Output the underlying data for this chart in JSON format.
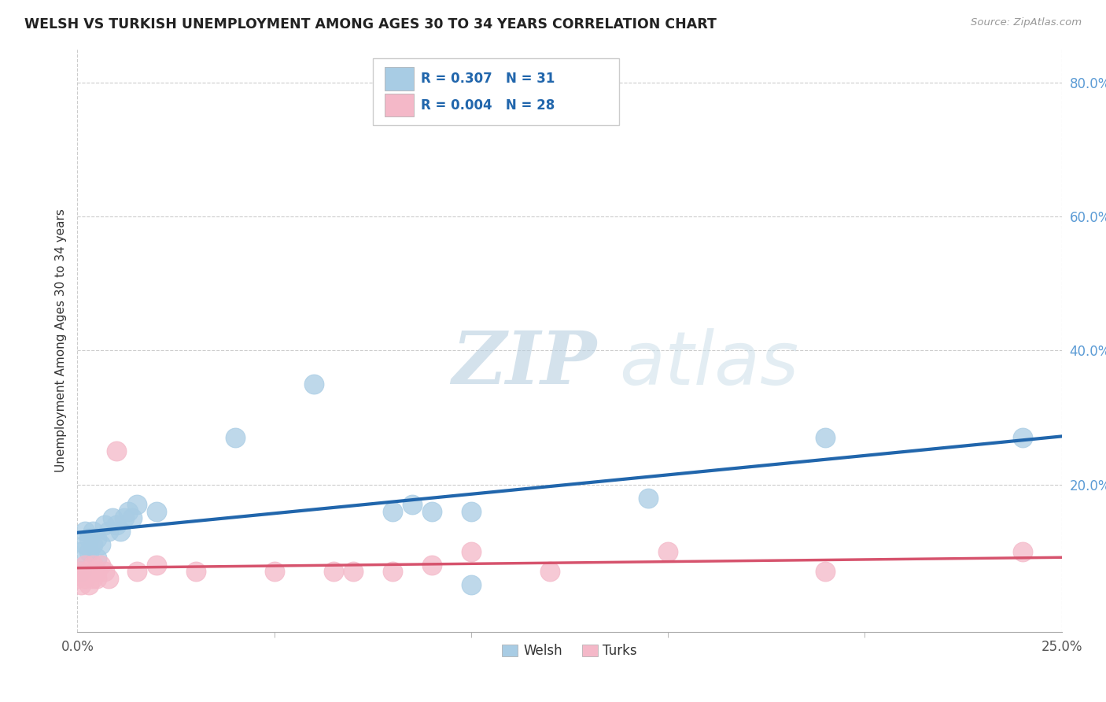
{
  "title": "WELSH VS TURKISH UNEMPLOYMENT AMONG AGES 30 TO 34 YEARS CORRELATION CHART",
  "source": "Source: ZipAtlas.com",
  "ylabel": "Unemployment Among Ages 30 to 34 years",
  "xlim": [
    0.0,
    0.25
  ],
  "ylim": [
    -0.02,
    0.85
  ],
  "xticks": [
    0.0,
    0.25
  ],
  "yticks": [
    0.2,
    0.4,
    0.6,
    0.8
  ],
  "xtick_minors": [
    0.05,
    0.1,
    0.15,
    0.2
  ],
  "welsh_R": 0.307,
  "welsh_N": 31,
  "turks_R": 0.004,
  "turks_N": 28,
  "welsh_color": "#a8cce4",
  "turks_color": "#f4b8c8",
  "welsh_line_color": "#2166ac",
  "turks_line_color": "#d6536d",
  "background_color": "#ffffff",
  "watermark_zip": "ZIP",
  "watermark_atlas": "atlas",
  "welsh_x": [
    0.001,
    0.001,
    0.002,
    0.002,
    0.003,
    0.003,
    0.004,
    0.004,
    0.005,
    0.005,
    0.006,
    0.007,
    0.008,
    0.009,
    0.01,
    0.011,
    0.012,
    0.013,
    0.014,
    0.015,
    0.02,
    0.04,
    0.06,
    0.08,
    0.085,
    0.09,
    0.1,
    0.1,
    0.145,
    0.19,
    0.24
  ],
  "welsh_y": [
    0.1,
    0.07,
    0.11,
    0.13,
    0.12,
    0.1,
    0.11,
    0.13,
    0.09,
    0.12,
    0.11,
    0.14,
    0.13,
    0.15,
    0.14,
    0.13,
    0.15,
    0.16,
    0.15,
    0.17,
    0.16,
    0.27,
    0.35,
    0.16,
    0.17,
    0.16,
    0.16,
    0.05,
    0.18,
    0.27,
    0.27
  ],
  "turks_x": [
    0.0,
    0.001,
    0.001,
    0.002,
    0.002,
    0.003,
    0.003,
    0.004,
    0.004,
    0.005,
    0.005,
    0.006,
    0.007,
    0.008,
    0.01,
    0.015,
    0.02,
    0.03,
    0.05,
    0.065,
    0.07,
    0.08,
    0.09,
    0.1,
    0.12,
    0.15,
    0.19,
    0.24
  ],
  "turks_y": [
    0.06,
    0.05,
    0.07,
    0.06,
    0.08,
    0.05,
    0.07,
    0.06,
    0.08,
    0.07,
    0.06,
    0.08,
    0.07,
    0.06,
    0.25,
    0.07,
    0.08,
    0.07,
    0.07,
    0.07,
    0.07,
    0.07,
    0.08,
    0.1,
    0.07,
    0.1,
    0.07,
    0.1
  ]
}
